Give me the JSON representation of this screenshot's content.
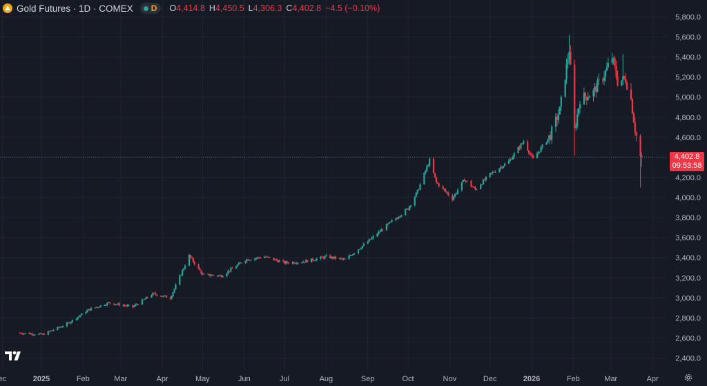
{
  "header": {
    "title": "Gold Futures · 1D · COMEX",
    "status_letter": "D",
    "ohlc": {
      "o_label": "O",
      "o_value": "4,414.8",
      "h_label": "H",
      "h_value": "4,450.5",
      "l_label": "L",
      "l_value": "4,306.3",
      "c_label": "C",
      "c_value": "4,402.8",
      "change": "−4.5 (−0.10%)"
    }
  },
  "price_tag": {
    "price": "4,402.8",
    "countdown": "09:53:58"
  },
  "colors": {
    "up": "#26a69a",
    "down": "#f23645",
    "background": "#161a25",
    "grid": "#232632",
    "axis_text": "#b2b5be"
  },
  "chart_data": {
    "type": "candlestick",
    "title": "",
    "xlabel": "",
    "ylabel": "",
    "ylim": [
      2350,
      5900
    ],
    "y_ticks": [
      "2,400.0",
      "2,600.0",
      "2,800.0",
      "3,000.0",
      "3,200.0",
      "3,400.0",
      "3,600.0",
      "3,800.0",
      "4,000.0",
      "4,200.0",
      "4,400.0",
      "4,600.0",
      "4,800.0",
      "5,000.0",
      "5,200.0",
      "5,400.0",
      "5,600.0",
      "5,800.0"
    ],
    "x_labels": [
      "ec",
      "2025",
      "Feb",
      "Mar",
      "Apr",
      "May",
      "Jun",
      "Jul",
      "Aug",
      "Sep",
      "Oct",
      "Nov",
      "Dec",
      "2026",
      "Feb",
      "Mar",
      "Apr"
    ],
    "current_price": 4402.8,
    "grid": true,
    "close_path": [
      [
        "2024-12-15",
        2650
      ],
      [
        "2025-01-02",
        2635
      ],
      [
        "2025-01-20",
        2740
      ],
      [
        "2025-02-05",
        2880
      ],
      [
        "2025-02-20",
        2950
      ],
      [
        "2025-03-10",
        2910
      ],
      [
        "2025-03-25",
        3040
      ],
      [
        "2025-04-07",
        3000
      ],
      [
        "2025-04-21",
        3420
      ],
      [
        "2025-05-01",
        3230
      ],
      [
        "2025-05-15",
        3220
      ],
      [
        "2025-06-02",
        3380
      ],
      [
        "2025-06-16",
        3410
      ],
      [
        "2025-07-01",
        3350
      ],
      [
        "2025-07-15",
        3360
      ],
      [
        "2025-08-01",
        3410
      ],
      [
        "2025-08-15",
        3380
      ],
      [
        "2025-09-01",
        3560
      ],
      [
        "2025-09-15",
        3720
      ],
      [
        "2025-10-01",
        3890
      ],
      [
        "2025-10-08",
        4060
      ],
      [
        "2025-10-17",
        4370
      ],
      [
        "2025-10-22",
        4150
      ],
      [
        "2025-11-03",
        3990
      ],
      [
        "2025-11-12",
        4180
      ],
      [
        "2025-11-20",
        4080
      ],
      [
        "2025-12-01",
        4230
      ],
      [
        "2025-12-15",
        4360
      ],
      [
        "2025-12-26",
        4560
      ],
      [
        "2026-01-02",
        4380
      ],
      [
        "2026-01-15",
        4620
      ],
      [
        "2026-01-22",
        4870
      ],
      [
        "2026-01-29",
        5480
      ],
      [
        "2026-02-02",
        4670
      ],
      [
        "2026-02-06",
        4980
      ],
      [
        "2026-02-16",
        5050
      ],
      [
        "2026-02-25",
        5250
      ],
      [
        "2026-03-02",
        5400
      ],
      [
        "2026-03-06",
        5160
      ],
      [
        "2026-03-12",
        5180
      ],
      [
        "2026-03-16",
        4980
      ],
      [
        "2026-03-19",
        4680
      ],
      [
        "2026-03-23",
        4410
      ],
      [
        "2026-03-24",
        4402.8
      ]
    ]
  }
}
